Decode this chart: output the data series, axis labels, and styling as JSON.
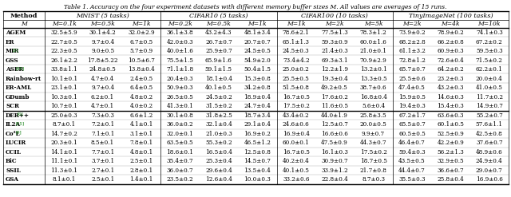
{
  "title": "Table 1. Accuracy on the four experiment datasets with different memory buffer sizes M. All values are averages of 15 runs.",
  "col_groups": [
    {
      "label": "MNIST (5 tasks)",
      "span": [
        1,
        3
      ]
    },
    {
      "label": "CIFAR10 (5 tasks)",
      "span": [
        4,
        6
      ]
    },
    {
      "label": "CIFAR100 (10 tasks)",
      "span": [
        7,
        9
      ]
    },
    {
      "label": "TinyImageNet (100 tasks)",
      "span": [
        10,
        12
      ]
    }
  ],
  "subheaders": [
    "M",
    "M=0.1k",
    "M=0.5k",
    "M=1k",
    "M=0.2k",
    "M=0.5k",
    "M=1k",
    "M=1k",
    "M=2k",
    "M=5k",
    "M=2k",
    "M=4k",
    "M=10k"
  ],
  "methods": [
    "AGEM",
    "ER",
    "MIR",
    "GSS",
    "ASER",
    "Rainbow-rt",
    "ER-AML",
    "GDumb",
    "SCR",
    "DER++",
    "IL2A",
    "Co²L",
    "LUCIR",
    "CCIL",
    "BiC",
    "SSIL",
    "GSA"
  ],
  "method_refs": [
    "",
    "",
    "[3]",
    "",
    "[40]",
    "",
    "",
    "",
    "",
    "[6]",
    "[55]",
    "[9]",
    "",
    "",
    "",
    "",
    ""
  ],
  "data": [
    [
      "32.5±5.9",
      "30.1±4.2",
      "32.0±2.9",
      "36.1±3.8",
      "43.2±4.3",
      "48.1±3.4",
      "78.6±2.1",
      "77.5±1.3",
      "78.3±1.2",
      "73.9±0.2",
      "78.9±0.2",
      "74.1±0.3"
    ],
    [
      "22.7±0.5",
      "9.7±0.4",
      "6.7±0.5",
      "42.0±0.3",
      "26.7±0.7",
      "20.7±0.7",
      "65.1±1.3",
      "59.3±0.9",
      "60.0±1.6",
      "68.2±2.8",
      "66.2±0.8",
      "67.2±0.2"
    ],
    [
      "22.3±0.5",
      "9.0±0.5",
      "5.7±0.9",
      "40.0±1.6",
      "25.9±0.7",
      "24.5±0.5",
      "24.5±0.3",
      "21.4±0.3",
      "21.0±0.1",
      "61.1±3.2",
      "60.9±0.3",
      "59.5±0.3"
    ],
    [
      "26.1±2.2",
      "17.8±5.22",
      "10.5±6.7",
      "75.5±1.5",
      "65.9±1.6",
      "54.9±2.0",
      "73.4±4.2",
      "69.3±3.1",
      "70.9±2.9",
      "72.8±1.2",
      "72.6±0.4",
      "71.5±0.2"
    ],
    [
      "33.8±1.1",
      "24.8±0.5",
      "13.8±0.4",
      "71.1±1.8",
      "59.1±1.5",
      "50.4±1.5",
      "25.0±0.2",
      "12.2±1.9",
      "13.2±0.1",
      "65.7±0.7",
      "64.2±0.2",
      "62.2±0.1"
    ],
    [
      "10.1±0.1",
      "4.7±0.4",
      "2.4±0.5",
      "20.4±0.3",
      "18.1±0.4",
      "15.3±0.8",
      "25.5±0.5",
      "19.3±0.4",
      "13.3±0.5",
      "25.5±0.6",
      "23.2±0.3",
      "20.0±0.4"
    ],
    [
      "23.1±0.1",
      "9.7±0.4",
      "6.4±0.5",
      "50.9±0.3",
      "40.1±0.5",
      "34.2±0.8",
      "51.5±0.8",
      "49.2±0.5",
      "38.7±0.6",
      "47.4±0.5",
      "43.2±0.3",
      "41.0±0.5"
    ],
    [
      "10.3±0.1",
      "6.2±0.1",
      "4.8±0.2",
      "26.5±0.5",
      "24.5±0.2",
      "18.9±0.4",
      "16.7±0.5",
      "17.6±0.2",
      "16.8±0.4",
      "15.9±0.5",
      "14.6±0.3",
      "11.7±0.2"
    ],
    [
      "10.7±0.1",
      "4.7±0.1",
      "4.0±0.2",
      "41.3±0.1",
      "31.5±0.2",
      "24.7±0.4",
      "17.5±0.2",
      "11.6±0.5",
      "5.6±0.4",
      "19.4±0.3",
      "15.4±0.3",
      "14.9±0.7"
    ],
    [
      "25.0±0.3",
      "7.3±0.3",
      "6.6±1.2",
      "30.1±0.8",
      "31.8±2.5",
      "18.7±3.4",
      "43.4±0.2",
      "44.0±1.9",
      "25.8±3.5",
      "67.2±1.7",
      "63.6±0.3",
      "55.2±0.7"
    ],
    [
      "8.7±0.1",
      "7.2±0.1",
      "4.1±0.1",
      "36.0±0.2",
      "32.1±0.4",
      "29.1±0.4",
      "24.6±0.6",
      "12.5±0.7",
      "20.0±0.5",
      "65.5±0.7",
      "60.1±0.5",
      "57.6±1.1"
    ],
    [
      "14.7±0.2",
      "7.1±0.1",
      "3.1±0.1",
      "32.0±0.1",
      "21.0±0.3",
      "16.9±0.2",
      "16.9±0.4",
      "16.6±0.6",
      "9.9±0.7",
      "60.5±0.5",
      "52.5±0.9",
      "42.5±0.8"
    ],
    [
      "20.3±0.1",
      "8.5±0.1",
      "7.8±0.1",
      "63.5±0.5",
      "55.3±0.2",
      "46.5±1.2",
      "60.0±0.1",
      "47.5±0.9",
      "44.3±0.7",
      "46.4±0.7",
      "42.2±0.9",
      "37.6±0.7"
    ],
    [
      "14.1±0.1",
      "7.7±0.1",
      "4.8±0.1",
      "18.6±0.1",
      "16.5±0.4",
      "12.5±0.8",
      "16.7±0.5",
      "16.1±0.3",
      "17.5±0.2",
      "59.4±0.3",
      "56.2±1.3",
      "48.9±0.6"
    ],
    [
      "11.1±0.1",
      "3.7±0.1",
      "2.5±0.1",
      "35.4±0.7",
      "25.3±0.4",
      "14.5±0.7",
      "40.2±0.4",
      "30.9±0.7",
      "18.7±0.5",
      "43.5±0.5",
      "32.9±0.5",
      "24.9±0.4"
    ],
    [
      "11.3±0.1",
      "2.7±0.1",
      "2.8±0.1",
      "36.0±0.7",
      "29.6±0.4",
      "13.5±0.4",
      "40.1±0.5",
      "33.9±1.2",
      "21.7±0.8",
      "44.4±0.7",
      "36.6±0.7",
      "29.0±0.7"
    ],
    [
      "8.1±0.1",
      "2.5±0.1",
      "1.4±0.1",
      "23.5±0.2",
      "12.6±0.4",
      "10.0±0.3",
      "33.2±0.6",
      "22.8±0.4",
      "8.7±0.3",
      "35.5±0.3",
      "25.8±0.4",
      "16.9±0.6"
    ]
  ],
  "separator_after": 8,
  "col_dividers": [
    3,
    6,
    9
  ],
  "ref_color": "#007700"
}
